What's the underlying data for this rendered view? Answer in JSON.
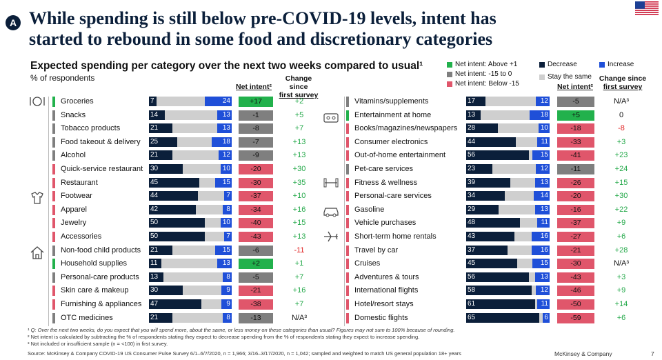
{
  "header": {
    "badge": "A",
    "title_line1": "While spending is still below pre-COVID-19 levels, intent has",
    "title_line2": "started to rebound in some food and discretionary categories",
    "subtitle": "Expected spending per category over the next two weeks compared to usual¹",
    "subtitle2": "% of respondents"
  },
  "column_headers": {
    "net_intent": "Net intent²",
    "change_line1": "Change since",
    "change_line2": "first survey"
  },
  "legend": {
    "above": "Net intent: Above +1",
    "between": "Net intent: -15 to 0",
    "below": "Net intent: Below -15",
    "decrease": "Decrease",
    "increase": "Increase",
    "same": "Stay the same"
  },
  "colors": {
    "decrease": "#0b1f3a",
    "increase": "#1f4fd8",
    "same": "#cfcfcf",
    "green": "#22b14c",
    "gray": "#7f7f7f",
    "red": "#e0566b",
    "positive_change": "#22a848",
    "negative_change": "#e02020"
  },
  "chart_data": {
    "type": "bar",
    "title": "Expected spending per category over the next two weeks compared to usual",
    "ylabel": "% of respondents",
    "series_names": [
      "Decrease",
      "Stay the same",
      "Increase"
    ],
    "left": [
      {
        "label": "Groceries",
        "decrease": 7,
        "increase": 24,
        "net": "+17",
        "net_class": "green",
        "change": "+2",
        "icon": "food-icon"
      },
      {
        "label": "Snacks",
        "decrease": 14,
        "increase": 13,
        "net": "-1",
        "net_class": "gray",
        "change": "+5"
      },
      {
        "label": "Tobacco products",
        "decrease": 21,
        "increase": 13,
        "net": "-8",
        "net_class": "gray",
        "change": "+7"
      },
      {
        "label": "Food takeout & delivery",
        "decrease": 25,
        "increase": 18,
        "net": "-7",
        "net_class": "gray",
        "change": "+13"
      },
      {
        "label": "Alcohol",
        "decrease": 21,
        "increase": 12,
        "net": "-9",
        "net_class": "gray",
        "change": "+13"
      },
      {
        "label": "Quick-service restaurant",
        "decrease": 30,
        "increase": 10,
        "net": "-20",
        "net_class": "red",
        "change": "+30"
      },
      {
        "label": "Restaurant",
        "decrease": 45,
        "increase": 15,
        "net": "-30",
        "net_class": "red",
        "change": "+35"
      },
      {
        "label": "Footwear",
        "decrease": 44,
        "increase": 7,
        "net": "-37",
        "net_class": "red",
        "change": "+10",
        "icon": "apparel-icon"
      },
      {
        "label": "Apparel",
        "decrease": 42,
        "increase": 8,
        "net": "-34",
        "net_class": "red",
        "change": "+16"
      },
      {
        "label": "Jewelry",
        "decrease": 50,
        "increase": 10,
        "net": "-40",
        "net_class": "red",
        "change": "+15"
      },
      {
        "label": "Accessories",
        "decrease": 50,
        "increase": 7,
        "net": "-43",
        "net_class": "red",
        "change": "+13"
      },
      {
        "label": "Non-food child products",
        "decrease": 21,
        "increase": 15,
        "net": "-6",
        "net_class": "gray",
        "change": "-11",
        "icon": "home-icon"
      },
      {
        "label": "Household supplies",
        "decrease": 11,
        "increase": 13,
        "net": "+2",
        "net_class": "green",
        "change": "+1"
      },
      {
        "label": "Personal-care products",
        "decrease": 13,
        "increase": 8,
        "net": "-5",
        "net_class": "gray",
        "change": "+7"
      },
      {
        "label": "Skin care & makeup",
        "decrease": 30,
        "increase": 9,
        "net": "-21",
        "net_class": "red",
        "change": "+16"
      },
      {
        "label": "Furnishing & appliances",
        "decrease": 47,
        "increase": 9,
        "net": "-38",
        "net_class": "red",
        "change": "+7"
      },
      {
        "label": "OTC medicines",
        "decrease": 21,
        "increase": 8,
        "net": "-13",
        "net_class": "gray",
        "change": "N/A³"
      }
    ],
    "right": [
      {
        "label": "Vitamins/supplements",
        "decrease": 17,
        "increase": 12,
        "net": "-5",
        "net_class": "gray",
        "change": "N/A³"
      },
      {
        "label": "Entertainment at home",
        "decrease": 13,
        "increase": 18,
        "net": "+5",
        "net_class": "green",
        "change": "0",
        "icon": "entertainment-icon"
      },
      {
        "label": "Books/magazines/newspapers",
        "decrease": 28,
        "increase": 10,
        "net": "-18",
        "net_class": "red",
        "change": "-8"
      },
      {
        "label": "Consumer electronics",
        "decrease": 44,
        "increase": 11,
        "net": "-33",
        "net_class": "red",
        "change": "+3"
      },
      {
        "label": "Out-of-home entertainment",
        "decrease": 56,
        "increase": 15,
        "net": "-41",
        "net_class": "red",
        "change": "+23"
      },
      {
        "label": "Pet-care services",
        "decrease": 23,
        "increase": 12,
        "net": "-11",
        "net_class": "gray",
        "change": "+24",
        "icon": "fitness-icon"
      },
      {
        "label": "Fitness & wellness",
        "decrease": 39,
        "increase": 13,
        "net": "-26",
        "net_class": "red",
        "change": "+15"
      },
      {
        "label": "Personal-care services",
        "decrease": 34,
        "increase": 14,
        "net": "-20",
        "net_class": "red",
        "change": "+30"
      },
      {
        "label": "Gasoline",
        "decrease": 29,
        "increase": 13,
        "net": "-16",
        "net_class": "red",
        "change": "+22",
        "icon": "car-icon"
      },
      {
        "label": "Vehicle purchases",
        "decrease": 48,
        "increase": 11,
        "net": "-37",
        "net_class": "red",
        "change": "+9"
      },
      {
        "label": "Short-term home rentals",
        "decrease": 43,
        "increase": 16,
        "net": "-27",
        "net_class": "red",
        "change": "+6",
        "icon": "plane-icon"
      },
      {
        "label": "Travel by car",
        "decrease": 37,
        "increase": 16,
        "net": "-21",
        "net_class": "red",
        "change": "+28"
      },
      {
        "label": "Cruises",
        "decrease": 45,
        "increase": 15,
        "net": "-30",
        "net_class": "red",
        "change": "N/A³"
      },
      {
        "label": "Adventures & tours",
        "decrease": 56,
        "increase": 13,
        "net": "-43",
        "net_class": "red",
        "change": "+3"
      },
      {
        "label": "International flights",
        "decrease": 58,
        "increase": 12,
        "net": "-46",
        "net_class": "red",
        "change": "+9"
      },
      {
        "label": "Hotel/resort stays",
        "decrease": 61,
        "increase": 11,
        "net": "-50",
        "net_class": "red",
        "change": "+14"
      },
      {
        "label": "Domestic flights",
        "decrease": 65,
        "increase": 6,
        "net": "-59",
        "net_class": "red",
        "change": "+6"
      }
    ]
  },
  "footnotes": {
    "f1": "¹ Q: Over the next two weeks, do you expect that you will spend more, about the same, or less money on these categories than usual? Figures may not sum to 100% because of rounding.",
    "f2": "² Net intent is calculated by subtracting the % of respondents stating they expect to decrease spending from the % of respondents stating they expect to increase spending.",
    "f3": "³ Not included or insufficient sample (n = <100) in first survey.",
    "source": "Source: McKinsey & Company COVID-19 US Consumer Pulse Survey 6/1–6/7/2020, n = 1,966; 3/16–3/17/2020, n = 1,042; sampled and weighted to match US general population 18+ years",
    "brand": "McKinsey & Company",
    "page": "7"
  }
}
